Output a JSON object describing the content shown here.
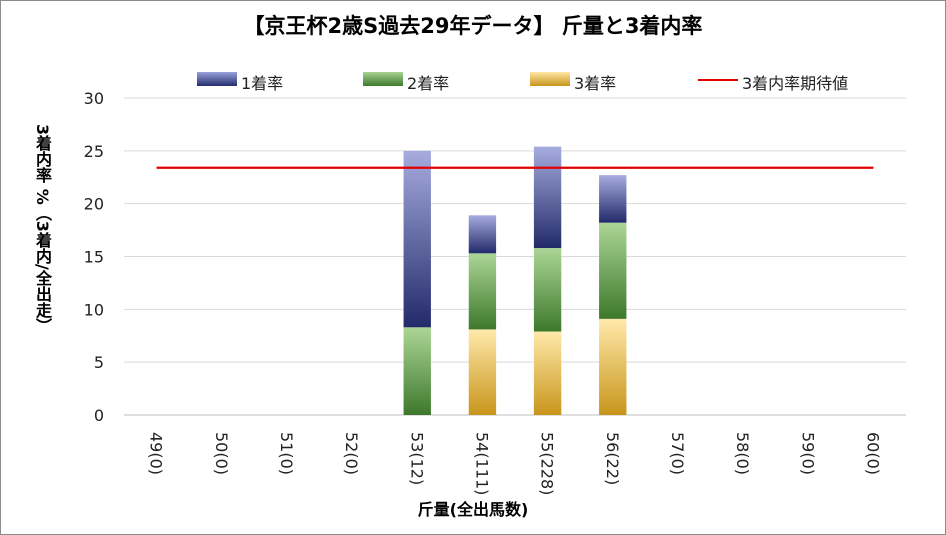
{
  "chart_data": {
    "type": "bar",
    "stacked": true,
    "title": "【京王杯2歳S過去29年データ】 斤量と3着内率",
    "xlabel": "斤量(全出馬数)",
    "ylabel": "3着内率 %（3着内/全出走）",
    "ylim": [
      0,
      30
    ],
    "yticks": [
      0,
      5,
      10,
      15,
      20,
      25,
      30
    ],
    "grid": true,
    "legend_position": "top",
    "categories": [
      "49(0)",
      "50(0)",
      "51(0)",
      "52(0)",
      "53(12)",
      "54(111)",
      "55(228)",
      "56(22)",
      "57(0)",
      "58(0)",
      "59(0)",
      "60(0)"
    ],
    "series": [
      {
        "name": "3着率",
        "values": [
          0,
          0,
          0,
          0,
          0,
          8.1,
          7.9,
          9.1,
          0,
          0,
          0,
          0
        ],
        "color": "#d9a52a"
      },
      {
        "name": "2着率",
        "values": [
          0,
          0,
          0,
          0,
          8.3,
          7.2,
          7.9,
          9.1,
          0,
          0,
          0,
          0
        ],
        "color": "#4e8a3a"
      },
      {
        "name": "1着率",
        "values": [
          0,
          0,
          0,
          0,
          16.7,
          3.6,
          9.6,
          4.5,
          0,
          0,
          0,
          0
        ],
        "color": "#2b3580"
      }
    ],
    "expected_line": {
      "name": "3着内率期待値",
      "value": 23.4,
      "color": "#e00000"
    }
  },
  "legend": {
    "items": [
      "1着率",
      "2着率",
      "3着率",
      "3着内率期待値"
    ]
  }
}
